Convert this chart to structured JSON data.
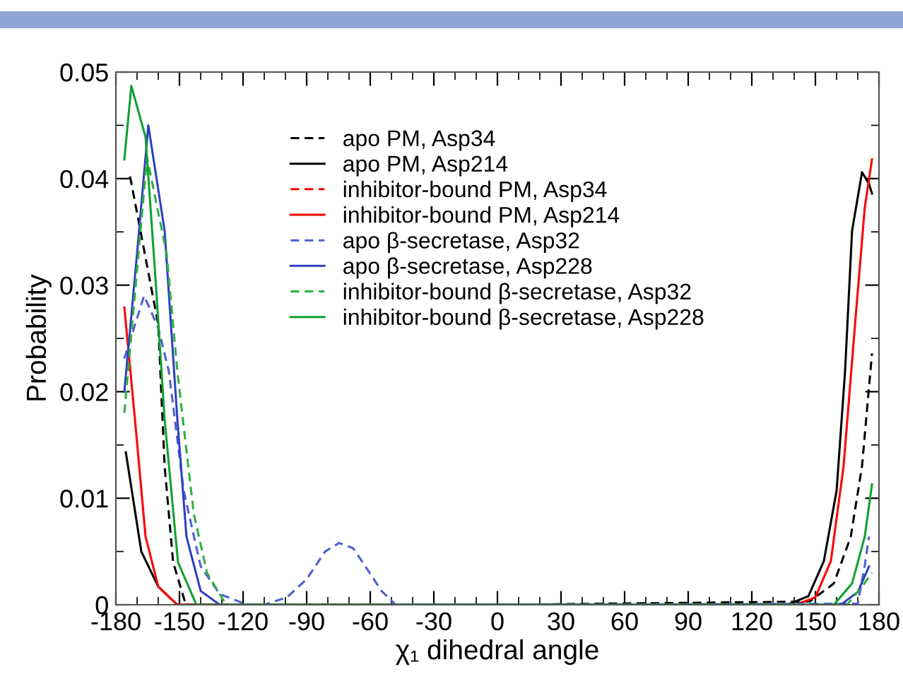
{
  "chart_data": {
    "type": "line",
    "xlabel": "χ₁ dihedral angle",
    "ylabel": "Probability",
    "xlim": [
      -180,
      180
    ],
    "xticks": [
      -180,
      -150,
      -120,
      -90,
      -60,
      -30,
      0,
      30,
      60,
      90,
      120,
      150,
      180
    ],
    "ylim": [
      0,
      0.05
    ],
    "yticks": [
      0,
      0.01,
      0.02,
      0.03,
      0.04,
      0.05
    ],
    "legend": "top",
    "grid": false,
    "marker": "none",
    "series": [
      {
        "name": "apo PM, Asp34",
        "color": "#000000",
        "line_style": "dashed",
        "x": [
          -173.3,
          -160,
          -157,
          -153,
          -147,
          0,
          147.3,
          158.7,
          166.7,
          172,
          176.7
        ],
        "values": [
          0.0402,
          0.0263,
          0.013,
          0.004,
          0,
          0,
          0.0003,
          0.002,
          0.0064,
          0.013,
          0.0236
        ]
      },
      {
        "name": "apo PM, Asp214",
        "color": "#000000",
        "line_style": "solid",
        "x": [
          -175.3,
          -168,
          -160,
          -151,
          0,
          136.7,
          146.7,
          154,
          160,
          164,
          167.3,
          172,
          175.3,
          176.7
        ],
        "values": [
          0.0143,
          0.005,
          0.0017,
          0,
          0,
          0,
          0.0008,
          0.0041,
          0.0107,
          0.0219,
          0.0351,
          0.0406,
          0.0395,
          0.0386
        ]
      },
      {
        "name": "inhibitor-bound PM, Asp34",
        "color": "#ff0000",
        "line_style": "dashed"
      },
      {
        "name": "inhibitor-bound PM, Asp214",
        "color": "#ff0000",
        "line_style": "solid",
        "x": [
          -176,
          -171,
          -166,
          -160,
          -151,
          0,
          140.7,
          150,
          157.3,
          163.3,
          168.7,
          173.3,
          176.7
        ],
        "values": [
          0.0279,
          0.0174,
          0.0064,
          0.0017,
          0,
          0,
          0,
          0.0007,
          0.0041,
          0.013,
          0.0263,
          0.0373,
          0.0418
        ]
      },
      {
        "name": "apo β-secretase, Asp32",
        "color": "#4f5fd0",
        "line_style": "dashed",
        "x": [
          -176,
          -166.7,
          -160,
          -155,
          -148,
          -140,
          -131,
          -118,
          -110,
          -99.3,
          -90,
          -81.3,
          -74.7,
          -68,
          -61.3,
          -54.7,
          -48,
          0,
          170,
          173.3,
          175.3
        ],
        "values": [
          0.0231,
          0.029,
          0.026,
          0.0219,
          0.0107,
          0.0036,
          0.001,
          0,
          0,
          0.0007,
          0.0024,
          0.005,
          0.0058,
          0.0053,
          0.0033,
          0.0013,
          0,
          0,
          0.0001,
          0.0037,
          0.0064
        ]
      },
      {
        "name": "apo β-secretase, Asp228",
        "color": "#3040c0",
        "line_style": "solid",
        "x": [
          -176,
          -170,
          -164.7,
          -157,
          -151,
          -146.7,
          -140,
          -131,
          0,
          162,
          170,
          175.3
        ],
        "values": [
          0.02,
          0.033,
          0.045,
          0.0351,
          0.0174,
          0.0064,
          0.0013,
          0,
          0,
          0,
          0.0012,
          0.0036
        ]
      },
      {
        "name": "inhibitor-bound β-secretase, Asp32",
        "color": "#30b040",
        "line_style": "dashed",
        "x": [
          -176,
          -165.3,
          -156,
          -151,
          -143.3,
          -137,
          -128,
          0,
          165,
          172,
          176.7
        ],
        "values": [
          0.018,
          0.042,
          0.0329,
          0.0219,
          0.0086,
          0.003,
          0,
          0,
          0,
          0.0017,
          0.003
        ]
      },
      {
        "name": "inhibitor-bound β-secretase, Asp228",
        "color": "#10a030",
        "line_style": "solid",
        "x": [
          -176,
          -172.7,
          -166,
          -161.3,
          -157,
          -150.7,
          -142,
          0,
          158.7,
          167.3,
          173.3,
          176.7
        ],
        "values": [
          0.0418,
          0.0487,
          0.0439,
          0.0306,
          0.0174,
          0.004,
          0,
          0,
          0,
          0.002,
          0.0064,
          0.0113
        ]
      }
    ]
  }
}
